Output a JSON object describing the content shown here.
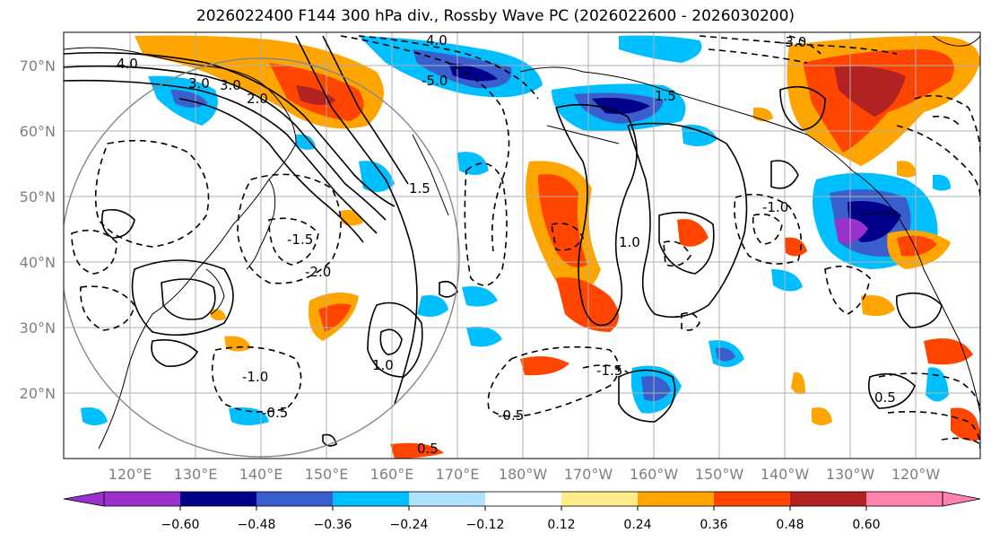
{
  "title": "2026022400 F144 300 hPa div., Rossby Wave PC (2026022600 - 2026030200)",
  "lat_labels": [
    "70°N",
    "60°N",
    "50°N",
    "40°N",
    "30°N",
    "20°N"
  ],
  "lon_labels": [
    "120°E",
    "130°E",
    "140°E",
    "150°E",
    "160°E",
    "170°E",
    "180°W",
    "170°W",
    "160°W",
    "150°W",
    "140°W",
    "130°W",
    "120°W"
  ],
  "colorbar": {
    "ticks": [
      "−0.60",
      "−0.48",
      "−0.36",
      "−0.24",
      "−0.12",
      "0.12",
      "0.24",
      "0.36",
      "0.48",
      "0.60"
    ],
    "colors": [
      "#9932cc",
      "#00008b",
      "#3a5fcd",
      "#00bfff",
      "#b0e2ff",
      "#ffffff",
      "#ffec8b",
      "#ffa500",
      "#ff4500",
      "#b22222",
      "#ff82ab"
    ]
  },
  "contour_labels": [
    "4.0",
    "3.0",
    "2.0",
    "1.5",
    "1.0",
    "0.5",
    "-0.5",
    "-1.0",
    "-1.5",
    "-2.0",
    "-3.0",
    "4.0",
    "3.0",
    "-5.0",
    "1.5",
    "1.0",
    "-1.0",
    "0.5",
    "-0.5",
    "-1.5"
  ],
  "colors": {
    "lines": "#000000",
    "grid": "#b0b0b0",
    "axis_text": "#7f7f7f"
  }
}
